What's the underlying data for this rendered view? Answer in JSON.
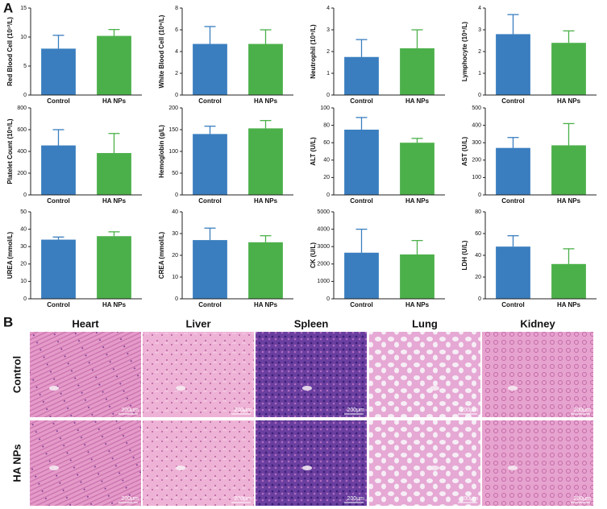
{
  "panel_labels": [
    "A",
    "B"
  ],
  "chart_data": [
    {
      "type": "bar",
      "ylabel": "Red Blood Cell (10¹²/L)",
      "categories": [
        "Control",
        "HA NPs"
      ],
      "values": [
        8.0,
        10.2
      ],
      "errors": [
        2.3,
        1.1
      ],
      "colors": [
        "#3a7ebf",
        "#4cb04a"
      ],
      "ylim": [
        0,
        15
      ],
      "yticks": [
        0,
        5,
        10,
        15
      ]
    },
    {
      "type": "bar",
      "ylabel": "White Blood Cell (10⁹/L)",
      "categories": [
        "Control",
        "HA NPs"
      ],
      "values": [
        4.7,
        4.7
      ],
      "errors": [
        1.6,
        1.3
      ],
      "colors": [
        "#3a7ebf",
        "#4cb04a"
      ],
      "ylim": [
        0,
        8
      ],
      "yticks": [
        0,
        2,
        4,
        6,
        8
      ]
    },
    {
      "type": "bar",
      "ylabel": "Neutrophil (10⁹/L)",
      "categories": [
        "Control",
        "HA NPs"
      ],
      "values": [
        1.75,
        2.15
      ],
      "errors": [
        0.8,
        0.85
      ],
      "colors": [
        "#3a7ebf",
        "#4cb04a"
      ],
      "ylim": [
        0,
        4
      ],
      "yticks": [
        0,
        1,
        2,
        3,
        4
      ]
    },
    {
      "type": "bar",
      "ylabel": "Lymphocyte (10⁹/L)",
      "categories": [
        "Control",
        "HA NPs"
      ],
      "values": [
        2.8,
        2.4
      ],
      "errors": [
        0.9,
        0.55
      ],
      "colors": [
        "#3a7ebf",
        "#4cb04a"
      ],
      "ylim": [
        0,
        4
      ],
      "yticks": [
        0,
        1,
        2,
        3,
        4
      ]
    },
    {
      "type": "bar",
      "ylabel": "Platelet Count (10⁹/L)",
      "categories": [
        "Control",
        "HA NPs"
      ],
      "values": [
        455,
        385
      ],
      "errors": [
        145,
        180
      ],
      "colors": [
        "#3a7ebf",
        "#4cb04a"
      ],
      "ylim": [
        0,
        800
      ],
      "yticks": [
        0,
        200,
        400,
        600,
        800
      ]
    },
    {
      "type": "bar",
      "ylabel": "Hemoglobin (g/L)",
      "categories": [
        "Control",
        "HA NPs"
      ],
      "values": [
        140,
        153
      ],
      "errors": [
        18,
        18
      ],
      "colors": [
        "#3a7ebf",
        "#4cb04a"
      ],
      "ylim": [
        0,
        200
      ],
      "yticks": [
        0,
        50,
        100,
        150,
        200
      ]
    },
    {
      "type": "bar",
      "ylabel": "ALT (U/L)",
      "categories": [
        "Control",
        "HA NPs"
      ],
      "values": [
        75,
        60
      ],
      "errors": [
        14,
        5
      ],
      "colors": [
        "#3a7ebf",
        "#4cb04a"
      ],
      "ylim": [
        0,
        100
      ],
      "yticks": [
        0,
        20,
        40,
        60,
        80,
        100
      ]
    },
    {
      "type": "bar",
      "ylabel": "AST (U/L)",
      "categories": [
        "Control",
        "HA NPs"
      ],
      "values": [
        270,
        285
      ],
      "errors": [
        60,
        125
      ],
      "colors": [
        "#3a7ebf",
        "#4cb04a"
      ],
      "ylim": [
        0,
        500
      ],
      "yticks": [
        0,
        100,
        200,
        300,
        400,
        500
      ]
    },
    {
      "type": "bar",
      "ylabel": "UREA (mmol/L)",
      "categories": [
        "Control",
        "HA NPs"
      ],
      "values": [
        34,
        36
      ],
      "errors": [
        1.5,
        2.5
      ],
      "colors": [
        "#3a7ebf",
        "#4cb04a"
      ],
      "ylim": [
        0,
        50
      ],
      "yticks": [
        0,
        10,
        20,
        30,
        40,
        50
      ]
    },
    {
      "type": "bar",
      "ylabel": "CREA (mmol/L)",
      "categories": [
        "Control",
        "HA NPs"
      ],
      "values": [
        27,
        26
      ],
      "errors": [
        5.5,
        3
      ],
      "colors": [
        "#3a7ebf",
        "#4cb04a"
      ],
      "ylim": [
        0,
        40
      ],
      "yticks": [
        0,
        10,
        20,
        30,
        40
      ]
    },
    {
      "type": "bar",
      "ylabel": "CK (U/L)",
      "categories": [
        "Control",
        "HA NPs"
      ],
      "values": [
        2650,
        2550
      ],
      "errors": [
        1350,
        800
      ],
      "colors": [
        "#3a7ebf",
        "#4cb04a"
      ],
      "ylim": [
        0,
        5000
      ],
      "yticks": [
        0,
        1000,
        2000,
        3000,
        4000,
        5000
      ]
    },
    {
      "type": "bar",
      "ylabel": "LDH (U/L)",
      "categories": [
        "Control",
        "HA NPs"
      ],
      "values": [
        48,
        32
      ],
      "errors": [
        10,
        14
      ],
      "colors": [
        "#3a7ebf",
        "#4cb04a"
      ],
      "ylim": [
        0,
        80
      ],
      "yticks": [
        0,
        20,
        40,
        60,
        80
      ]
    }
  ],
  "histology": {
    "columns": [
      "Heart",
      "Liver",
      "Spleen",
      "Lung",
      "Kidney"
    ],
    "rows": [
      "Control",
      "HA NPs"
    ],
    "scale_bar": "200μm"
  }
}
